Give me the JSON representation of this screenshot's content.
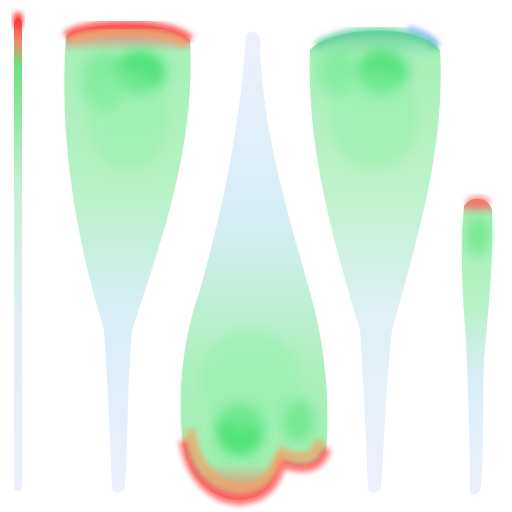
{
  "image": {
    "kind": "texture-atlas",
    "description_colors": {
      "background": "#ffffff",
      "stem": "#e8ecfb",
      "mid": "#cfeaf4",
      "body": "#9ff0b4",
      "core": "#3ee06a",
      "tip": "#ff4a4a",
      "tip_orange": "#f7a060"
    },
    "strokes": [
      {
        "id": "thin-stalk-left",
        "orientation": "tip-top",
        "tip_color": "red"
      },
      {
        "id": "large-petal-left",
        "orientation": "tip-top",
        "tip_color": "red"
      },
      {
        "id": "large-petal-center",
        "orientation": "tip-bottom",
        "tip_color": "red"
      },
      {
        "id": "large-petal-right",
        "orientation": "tip-top",
        "tip_color": "green-blue"
      },
      {
        "id": "small-petal-right",
        "orientation": "tip-top",
        "tip_color": "red"
      }
    ]
  }
}
